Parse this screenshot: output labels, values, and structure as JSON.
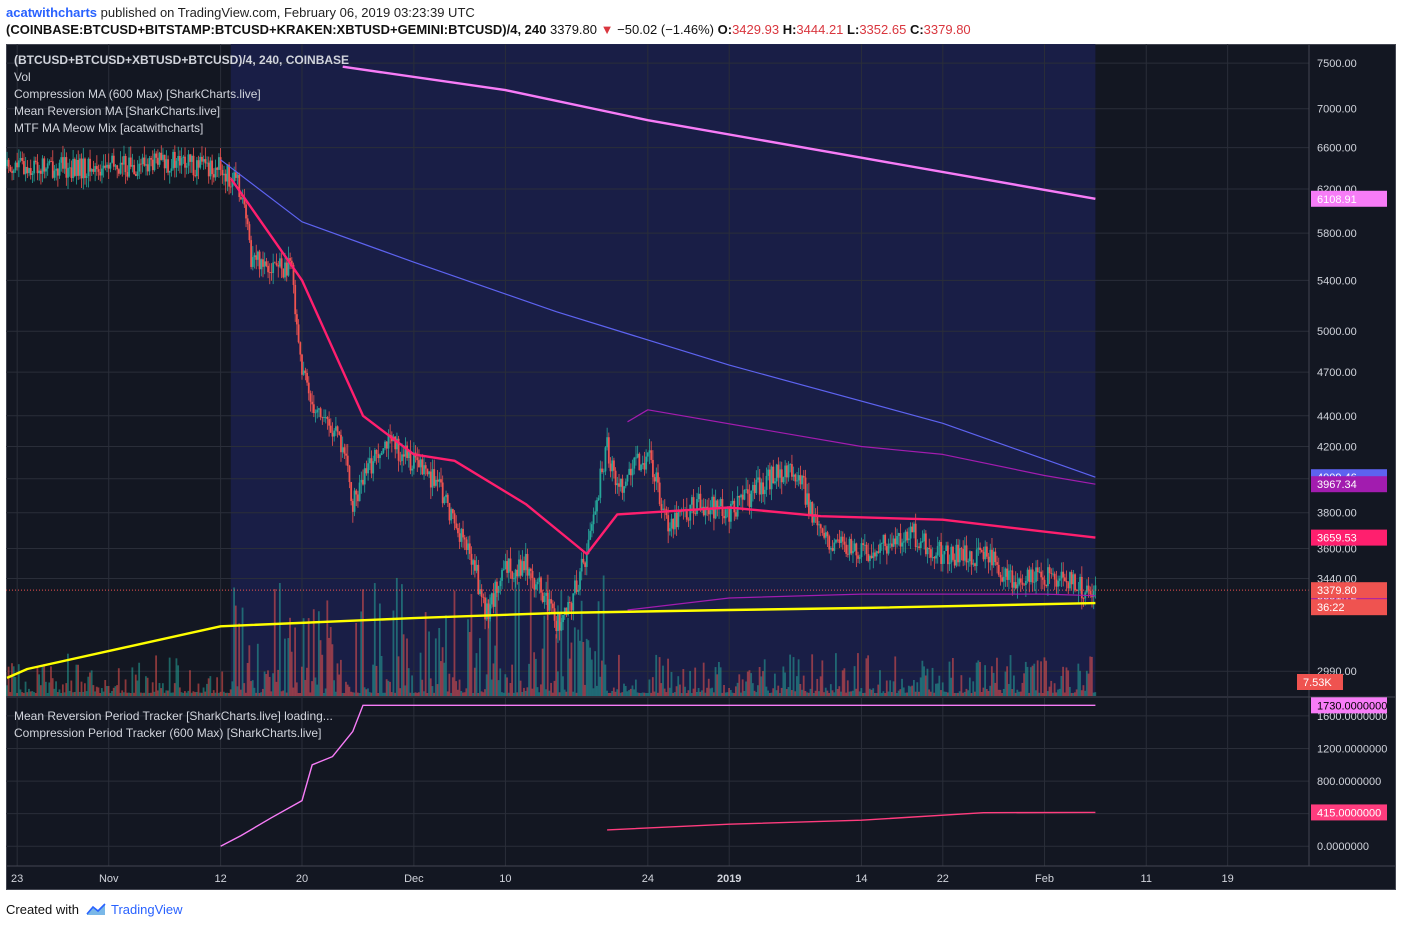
{
  "header": {
    "author": "acatwithcharts",
    "published": "published on TradingView.com, February 06, 2019 03:23:39 UTC",
    "symbol": "(COINBASE:BTCUSD+BITSTAMP:BTCUSD+KRAKEN:XBTUSD+GEMINI:BTCUSD)/4, 240",
    "last": "3379.80",
    "change": "−50.02 (−1.46%)",
    "open_label": "O:",
    "open": "3429.93",
    "high_label": "H:",
    "high": "3444.21",
    "low_label": "L:",
    "low": "3352.65",
    "close_label": "C:",
    "close": "3379.80"
  },
  "footer": {
    "created_with": "Created with",
    "brand": "TradingView"
  },
  "colors": {
    "background": "#131722",
    "panel_border": "#434651",
    "grid": "#2a2e39",
    "cloud": "#1b1f4a",
    "up": "#26a69a",
    "down": "#ef5350",
    "ma_magenta": "#f77cf7",
    "ma_blue": "#5d63f0",
    "ma_pink": "#ff1f6e",
    "mr_band": "#a21caf",
    "compression": "#ffff00",
    "tracker_line": "#ff3c7e"
  },
  "chart_data": [
    {
      "type": "candlestick",
      "title": "(BTCUSD+BTCUSD+XBTUSD+BTCUSD)/4, 240, COINBASE",
      "legend": [
        "Vol",
        "Compression MA (600 Max) [SharkCharts.live]",
        "Mean Reversion MA [SharkCharts.live]",
        "MTF MA Meow Mix [acatwithcharts]"
      ],
      "x_ticks": [
        [
          "2018-10-23",
          "23"
        ],
        [
          "2018-11-01",
          "Nov"
        ],
        [
          "2018-11-12",
          "12"
        ],
        [
          "2018-11-20",
          "20"
        ],
        [
          "2018-12-01",
          "Dec"
        ],
        [
          "2018-12-10",
          "10"
        ],
        [
          "2018-12-24",
          "24"
        ],
        [
          "2019-01-01",
          "2019"
        ],
        [
          "2019-01-14",
          "14"
        ],
        [
          "2019-01-22",
          "22"
        ],
        [
          "2019-02-01",
          "Feb"
        ],
        [
          "2019-02-11",
          "11"
        ],
        [
          "2019-02-19",
          "19"
        ]
      ],
      "x_range": [
        "2018-10-22",
        "2019-02-27"
      ],
      "y_ticks": [
        2990,
        3440,
        3600,
        3800,
        4000,
        4200,
        4400,
        4700,
        5000,
        5400,
        5800,
        6200,
        6600,
        7000,
        7500
      ],
      "y_scale": "log",
      "y_range": [
        2880,
        7720
      ],
      "price_path": [
        [
          "2018-10-22",
          6420
        ],
        [
          "2018-10-30",
          6390
        ],
        [
          "2018-11-07",
          6460
        ],
        [
          "2018-11-12",
          6400
        ],
        [
          "2018-11-14",
          6200
        ],
        [
          "2018-11-15",
          5600
        ],
        [
          "2018-11-19",
          5480
        ],
        [
          "2018-11-20",
          4700
        ],
        [
          "2018-11-21",
          4500
        ],
        [
          "2018-11-24",
          4200
        ],
        [
          "2018-11-25",
          3850
        ],
        [
          "2018-11-28",
          4250
        ],
        [
          "2018-11-30",
          4150
        ],
        [
          "2018-12-03",
          4000
        ],
        [
          "2018-12-07",
          3500
        ],
        [
          "2018-12-08",
          3250
        ],
        [
          "2018-12-10",
          3480
        ],
        [
          "2018-12-12",
          3520
        ],
        [
          "2018-12-15",
          3220
        ],
        [
          "2018-12-16",
          3240
        ],
        [
          "2018-12-18",
          3580
        ],
        [
          "2018-12-20",
          4200
        ],
        [
          "2018-12-21",
          3950
        ],
        [
          "2018-12-24",
          4150
        ],
        [
          "2018-12-26",
          3750
        ],
        [
          "2018-12-29",
          3850
        ],
        [
          "2019-01-01",
          3800
        ],
        [
          "2019-01-06",
          4050
        ],
        [
          "2019-01-08",
          4000
        ],
        [
          "2019-01-10",
          3650
        ],
        [
          "2019-01-14",
          3580
        ],
        [
          "2019-01-19",
          3680
        ],
        [
          "2019-01-22",
          3560
        ],
        [
          "2019-01-27",
          3560
        ],
        [
          "2019-01-28",
          3450
        ],
        [
          "2019-01-29",
          3420
        ],
        [
          "2019-02-01",
          3450
        ],
        [
          "2019-02-06",
          3380
        ]
      ],
      "series": [
        {
          "name": "Compression MA (600 Max) [SharkCharts.live]",
          "color_key": "compression",
          "end_label": "3314.22",
          "points": [
            [
              "2018-10-22",
              2960
            ],
            [
              "2018-10-24",
              3000
            ],
            [
              "2018-11-12",
              3200
            ],
            [
              "2018-12-01",
              3240
            ],
            [
              "2018-12-15",
              3265
            ],
            [
              "2019-01-01",
              3280
            ],
            [
              "2019-01-14",
              3290
            ],
            [
              "2019-02-06",
              3314.22
            ]
          ]
        },
        {
          "name": "MTF MA Meow Mix [acatwithcharts]",
          "color_key": "ma_magenta",
          "end_label": "6108.91",
          "points": [
            [
              "2018-11-24",
              7460
            ],
            [
              "2018-12-10",
              7200
            ],
            [
              "2018-12-24",
              6880
            ],
            [
              "2019-01-14",
              6500
            ],
            [
              "2019-02-06",
              6108.91
            ]
          ]
        },
        {
          "name": "MTF MA Meow Mix [acatwithcharts]",
          "color_key": "ma_blue",
          "end_label": "4009.46",
          "points": [
            [
              "2018-11-12",
              6480
            ],
            [
              "2018-11-20",
              5900
            ],
            [
              "2018-12-01",
              5550
            ],
            [
              "2018-12-15",
              5150
            ],
            [
              "2019-01-01",
              4750
            ],
            [
              "2019-01-22",
              4350
            ],
            [
              "2019-02-06",
              4009.46
            ]
          ]
        },
        {
          "name": "Mean Reversion MA [SharkCharts.live]",
          "color_key": "ma_pink",
          "end_label": "3659.53",
          "points": [
            [
              "2018-11-13",
              6300
            ],
            [
              "2018-11-20",
              5400
            ],
            [
              "2018-11-26",
              4400
            ],
            [
              "2018-12-01",
              4150
            ],
            [
              "2018-12-05",
              4110
            ],
            [
              "2018-12-12",
              3850
            ],
            [
              "2018-12-18",
              3570
            ],
            [
              "2018-12-21",
              3790
            ],
            [
              "2019-01-01",
              3830
            ],
            [
              "2019-01-10",
              3780
            ],
            [
              "2019-01-22",
              3760
            ],
            [
              "2019-02-06",
              3659.53
            ]
          ]
        },
        {
          "name": "Mean Reversion MA [SharkCharts.live]",
          "color_key": "mr_band",
          "end_label": "3967.34",
          "points": [
            [
              "2018-12-22",
              4360
            ],
            [
              "2018-12-24",
              4440
            ],
            [
              "2019-01-14",
              4200
            ],
            [
              "2019-01-22",
              4150
            ],
            [
              "2019-02-01",
              4020
            ],
            [
              "2019-02-06",
              3967.34
            ]
          ]
        },
        {
          "name": "Mean Reversion MA [SharkCharts.live]",
          "color_key": "mr_band",
          "end_label": "3351.72",
          "points": [
            [
              "2018-12-22",
              3280
            ],
            [
              "2019-01-01",
              3340
            ],
            [
              "2019-01-14",
              3360
            ],
            [
              "2019-02-01",
              3360
            ],
            [
              "2019-02-06",
              3351.72
            ]
          ]
        }
      ],
      "price_labels": [
        "3379.80",
        "36:22"
      ],
      "volume_label": "7.53K"
    },
    {
      "type": "line",
      "legend": [
        "Mean Reversion Period Tracker [SharkCharts.live] loading...",
        "Compression Period Tracker (600 Max) [SharkCharts.live]"
      ],
      "y_ticks": [
        "0.0000000",
        "400.0000000",
        "800.0000000",
        "1200.0000000",
        "1600.0000000"
      ],
      "y_range": [
        -120,
        1820
      ],
      "series": [
        {
          "name": "Mean Reversion Period Tracker [SharkCharts.live] loading...",
          "color_key": "ma_magenta",
          "end_label": "1730.0000000",
          "points": [
            [
              "2018-11-12",
              0
            ],
            [
              "2018-11-14",
              130
            ],
            [
              "2018-11-17",
              350
            ],
            [
              "2018-11-20",
              560
            ],
            [
              "2018-11-21",
              1000
            ],
            [
              "2018-11-23",
              1100
            ],
            [
              "2018-11-25",
              1410
            ],
            [
              "2018-11-26",
              1730
            ],
            [
              "2019-02-06",
              1730
            ]
          ]
        },
        {
          "name": "Compression Period Tracker (600 Max) [SharkCharts.live]",
          "color_key": "tracker_line",
          "end_label": "415.0000000",
          "points": [
            [
              "2018-12-20",
              200
            ],
            [
              "2019-01-01",
              270
            ],
            [
              "2019-01-14",
              320
            ],
            [
              "2019-01-26",
              412
            ],
            [
              "2019-02-06",
              415
            ]
          ]
        }
      ]
    }
  ]
}
